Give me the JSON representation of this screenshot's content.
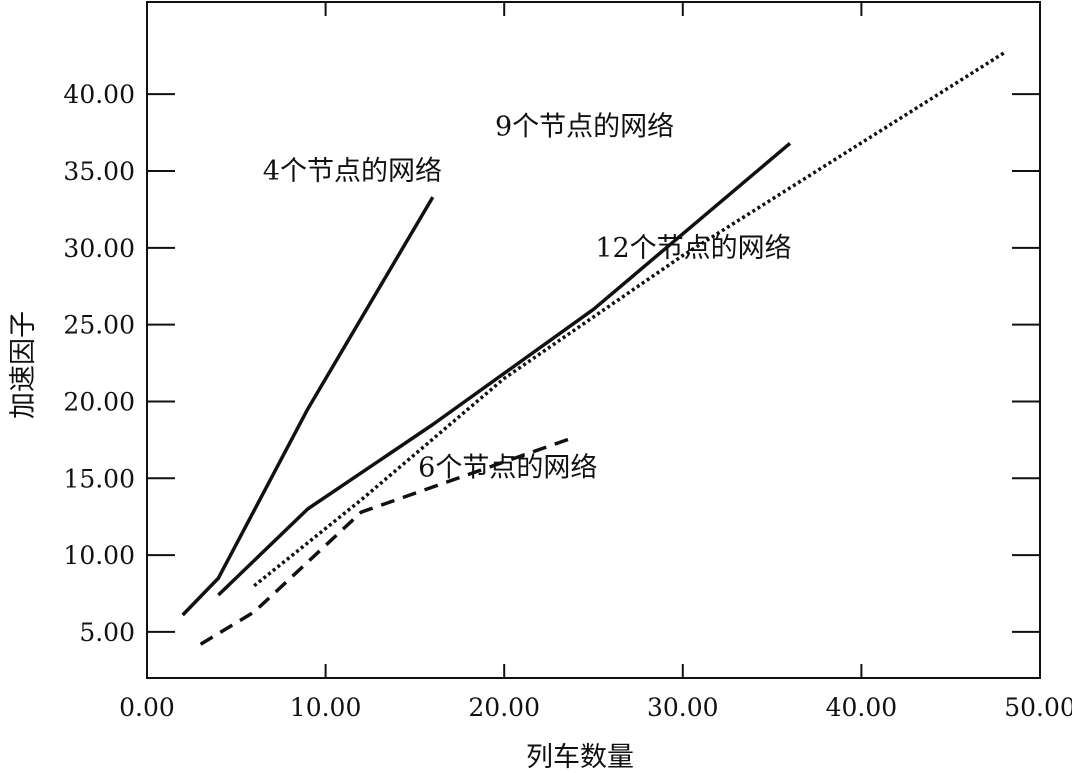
{
  "chart_data": {
    "type": "line",
    "title": "",
    "xlabel": "列车数量",
    "ylabel": "加速因子",
    "xlim": [
      0,
      50
    ],
    "ylim": [
      2,
      46
    ],
    "xticks": [
      0,
      10,
      20,
      30,
      40,
      50
    ],
    "xtick_labels": [
      "0.00",
      "10.00",
      "20.00",
      "30.00",
      "40.00",
      "50.00"
    ],
    "yticks": [
      5,
      10,
      15,
      20,
      25,
      30,
      35,
      40
    ],
    "ytick_labels": [
      "5.00",
      "10.00",
      "15.00",
      "20.00",
      "25.00",
      "30.00",
      "35.00",
      "40.00"
    ],
    "grid": false,
    "legend": "none",
    "series": [
      {
        "name": "4个节点的网络",
        "style": "solid",
        "color": "#111111",
        "x": [
          2,
          4,
          9,
          16
        ],
        "y": [
          6.1,
          8.5,
          19.5,
          33.3
        ],
        "label_at": [
          11.5,
          34.4
        ]
      },
      {
        "name": "9个节点的网络",
        "style": "solid",
        "color": "#111111",
        "x": [
          4,
          9,
          16,
          25,
          36
        ],
        "y": [
          7.4,
          13,
          18.5,
          26,
          36.8
        ],
        "label_at": [
          24.5,
          37.3
        ]
      },
      {
        "name": "12个节点的网络",
        "style": "dotted",
        "color": "#111111",
        "x": [
          6,
          12,
          20,
          30,
          48
        ],
        "y": [
          8,
          13.6,
          21.5,
          29.5,
          42.7
        ],
        "label_at": [
          30.6,
          29.4
        ]
      },
      {
        "name": "6个节点的网络",
        "style": "dashed",
        "color": "#111111",
        "x": [
          3,
          6,
          12,
          24
        ],
        "y": [
          4.2,
          6.3,
          12.8,
          17.7
        ],
        "label_at": [
          20.2,
          15.1
        ]
      }
    ]
  }
}
